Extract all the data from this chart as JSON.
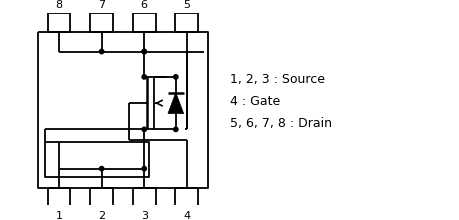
{
  "bg_color": "#ffffff",
  "line_color": "#000000",
  "legend_text": "1, 2, 3 : Source\n4 : Gate\n5, 6, 7, 8 : Drain",
  "pin_labels_top": [
    "8",
    "7",
    "6",
    "5"
  ],
  "pin_labels_bot": [
    "1",
    "2",
    "3",
    "4"
  ],
  "fig_w": 4.6,
  "fig_h": 2.2,
  "dpi": 100
}
